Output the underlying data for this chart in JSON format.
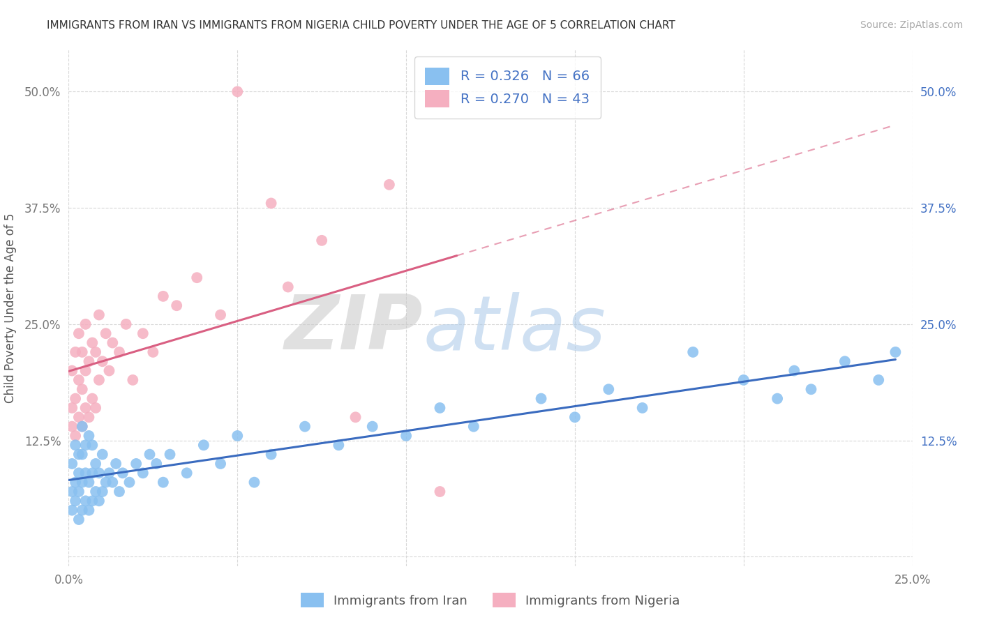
{
  "title": "IMMIGRANTS FROM IRAN VS IMMIGRANTS FROM NIGERIA CHILD POVERTY UNDER THE AGE OF 5 CORRELATION CHART",
  "source": "Source: ZipAtlas.com",
  "ylabel": "Child Poverty Under the Age of 5",
  "x_label_iran": "Immigrants from Iran",
  "x_label_nigeria": "Immigrants from Nigeria",
  "xlim": [
    0.0,
    0.25
  ],
  "ylim": [
    -0.01,
    0.545
  ],
  "xticks": [
    0.0,
    0.05,
    0.1,
    0.15,
    0.2,
    0.25
  ],
  "yticks": [
    0.0,
    0.125,
    0.25,
    0.375,
    0.5
  ],
  "iran_color": "#89c0f0",
  "nigeria_color": "#f5afc0",
  "iran_line_color": "#3a6bbf",
  "nigeria_line_color": "#d95f82",
  "iran_R": 0.326,
  "iran_N": 66,
  "nigeria_R": 0.27,
  "nigeria_N": 43,
  "watermark_zip": "ZIP",
  "watermark_atlas": "atlas",
  "watermark_color_zip": "#c8c8c8",
  "watermark_color_atlas": "#a8c8e8",
  "legend_color": "#4472c4",
  "title_fontsize": 11,
  "source_fontsize": 10,
  "tick_fontsize": 12,
  "ylabel_fontsize": 12,
  "iran_x": [
    0.001,
    0.001,
    0.001,
    0.002,
    0.002,
    0.002,
    0.003,
    0.003,
    0.003,
    0.003,
    0.004,
    0.004,
    0.004,
    0.004,
    0.005,
    0.005,
    0.005,
    0.006,
    0.006,
    0.006,
    0.007,
    0.007,
    0.007,
    0.008,
    0.008,
    0.009,
    0.009,
    0.01,
    0.01,
    0.011,
    0.012,
    0.013,
    0.014,
    0.015,
    0.016,
    0.018,
    0.02,
    0.022,
    0.024,
    0.026,
    0.028,
    0.03,
    0.035,
    0.04,
    0.045,
    0.05,
    0.055,
    0.06,
    0.07,
    0.08,
    0.09,
    0.1,
    0.11,
    0.12,
    0.14,
    0.15,
    0.16,
    0.17,
    0.185,
    0.2,
    0.21,
    0.215,
    0.22,
    0.23,
    0.24,
    0.245
  ],
  "iran_y": [
    0.05,
    0.07,
    0.1,
    0.06,
    0.08,
    0.12,
    0.04,
    0.07,
    0.09,
    0.11,
    0.05,
    0.08,
    0.11,
    0.14,
    0.06,
    0.09,
    0.12,
    0.05,
    0.08,
    0.13,
    0.06,
    0.09,
    0.12,
    0.07,
    0.1,
    0.06,
    0.09,
    0.07,
    0.11,
    0.08,
    0.09,
    0.08,
    0.1,
    0.07,
    0.09,
    0.08,
    0.1,
    0.09,
    0.11,
    0.1,
    0.08,
    0.11,
    0.09,
    0.12,
    0.1,
    0.13,
    0.08,
    0.11,
    0.14,
    0.12,
    0.14,
    0.13,
    0.16,
    0.14,
    0.17,
    0.15,
    0.18,
    0.16,
    0.22,
    0.19,
    0.17,
    0.2,
    0.18,
    0.21,
    0.19,
    0.22
  ],
  "nigeria_x": [
    0.001,
    0.001,
    0.001,
    0.002,
    0.002,
    0.002,
    0.003,
    0.003,
    0.003,
    0.004,
    0.004,
    0.004,
    0.005,
    0.005,
    0.005,
    0.006,
    0.006,
    0.007,
    0.007,
    0.008,
    0.008,
    0.009,
    0.009,
    0.01,
    0.011,
    0.012,
    0.013,
    0.015,
    0.017,
    0.019,
    0.022,
    0.025,
    0.028,
    0.032,
    0.038,
    0.045,
    0.05,
    0.06,
    0.065,
    0.075,
    0.085,
    0.095,
    0.11
  ],
  "nigeria_y": [
    0.14,
    0.16,
    0.2,
    0.13,
    0.17,
    0.22,
    0.15,
    0.19,
    0.24,
    0.14,
    0.18,
    0.22,
    0.16,
    0.2,
    0.25,
    0.15,
    0.21,
    0.17,
    0.23,
    0.16,
    0.22,
    0.19,
    0.26,
    0.21,
    0.24,
    0.2,
    0.23,
    0.22,
    0.25,
    0.19,
    0.24,
    0.22,
    0.28,
    0.27,
    0.3,
    0.26,
    0.5,
    0.38,
    0.29,
    0.34,
    0.15,
    0.4,
    0.07
  ]
}
